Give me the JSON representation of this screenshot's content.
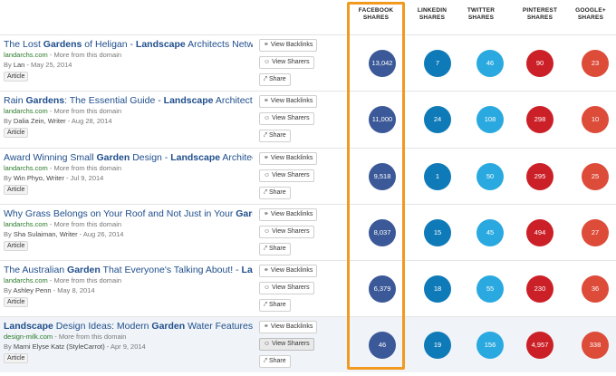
{
  "columns": [
    {
      "line1": "FACEBOOK",
      "line2": "SHARES"
    },
    {
      "line1": "LINKEDIN",
      "line2": "SHARES"
    },
    {
      "line1": "TWITTER",
      "line2": "SHARES"
    },
    {
      "line1": "PINTEREST",
      "line2": "SHARES"
    },
    {
      "line1": "GOOGLE+",
      "line2": "SHARES"
    }
  ],
  "buttons": {
    "backlinks": "View Backlinks",
    "sharers": "View Sharers",
    "share": "Share"
  },
  "colors": {
    "facebook": "#3b5998",
    "linkedin": "#0f7ab8",
    "twitter": "#2aa9e0",
    "pinterest": "#cb2027",
    "googleplus": "#dd4b39",
    "highlight_border": "#f19a1f"
  },
  "rows": [
    {
      "title_parts": [
        {
          "t": "The Lost ",
          "b": false
        },
        {
          "t": "Gardens",
          "b": true
        },
        {
          "t": " of Heligan - ",
          "b": false
        },
        {
          "t": "Landscape",
          "b": true
        },
        {
          "t": " Architects Network",
          "b": false
        }
      ],
      "domain": "landarchs.com",
      "more": " - More from this domain",
      "by": "By ",
      "author": "Lan",
      "date": " - May 25, 2014",
      "tag": "Article",
      "shares": {
        "facebook": "13,042",
        "linkedin": "7",
        "twitter": "46",
        "pinterest": "90",
        "googleplus": "23"
      }
    },
    {
      "title_parts": [
        {
          "t": "Rain ",
          "b": false
        },
        {
          "t": "Gardens",
          "b": true
        },
        {
          "t": ": The Essential Guide - ",
          "b": false
        },
        {
          "t": "Landscape",
          "b": true
        },
        {
          "t": " Architects Net",
          "b": false
        }
      ],
      "domain": "landarchs.com",
      "more": " - More from this domain",
      "by": "By ",
      "author": "Dalia Zein, Writer",
      "date": " - Aug 28, 2014",
      "tag": "Article",
      "shares": {
        "facebook": "11,000",
        "linkedin": "24",
        "twitter": "108",
        "pinterest": "298",
        "googleplus": "10"
      }
    },
    {
      "title_parts": [
        {
          "t": "Award Winning Small ",
          "b": false
        },
        {
          "t": "Garden",
          "b": true
        },
        {
          "t": " Design - ",
          "b": false
        },
        {
          "t": "Landscape",
          "b": true
        },
        {
          "t": " Architects N",
          "b": false
        }
      ],
      "domain": "landarchs.com",
      "more": " - More from this domain",
      "by": "By ",
      "author": "Win Phyo, Writer",
      "date": " - Jul 9, 2014",
      "tag": "Article",
      "shares": {
        "facebook": "9,518",
        "linkedin": "1",
        "twitter": "50",
        "pinterest": "295",
        "googleplus": "25"
      }
    },
    {
      "title_parts": [
        {
          "t": "Why Grass Belongs on Your Roof and Not Just in Your ",
          "b": false
        },
        {
          "t": "Garden",
          "b": true
        }
      ],
      "domain": "landarchs.com",
      "more": " - More from this domain",
      "by": "By ",
      "author": "Sha Sulaiman, Writer",
      "date": " - Aug 26, 2014",
      "tag": "Article",
      "shares": {
        "facebook": "8,037",
        "linkedin": "15",
        "twitter": "45",
        "pinterest": "494",
        "googleplus": "27"
      }
    },
    {
      "title_parts": [
        {
          "t": "The Australian ",
          "b": false
        },
        {
          "t": "Garden",
          "b": true
        },
        {
          "t": " That Everyone's Talking About! - ",
          "b": false
        },
        {
          "t": "Landsc",
          "b": true
        }
      ],
      "domain": "landarchs.com",
      "more": " - More from this domain",
      "by": "By ",
      "author": "Ashley Penn",
      "date": " - May 8, 2014",
      "tag": "Article",
      "shares": {
        "facebook": "6,379",
        "linkedin": "18",
        "twitter": "55",
        "pinterest": "230",
        "googleplus": "36"
      }
    },
    {
      "title_parts": [
        {
          "t": "Landscape",
          "b": true
        },
        {
          "t": " Design Ideas: Modern ",
          "b": false
        },
        {
          "t": "Garden",
          "b": true
        },
        {
          "t": " Water Features",
          "b": false
        }
      ],
      "domain": "design-milk.com",
      "more": " - More from this domain",
      "by": "By ",
      "author": "Marni Elyse Katz (StyleCarrot)",
      "date": " - Apr 9, 2014",
      "tag": "Article",
      "shares": {
        "facebook": "46",
        "linkedin": "19",
        "twitter": "156",
        "pinterest": "4,957",
        "googleplus": "338"
      }
    }
  ]
}
